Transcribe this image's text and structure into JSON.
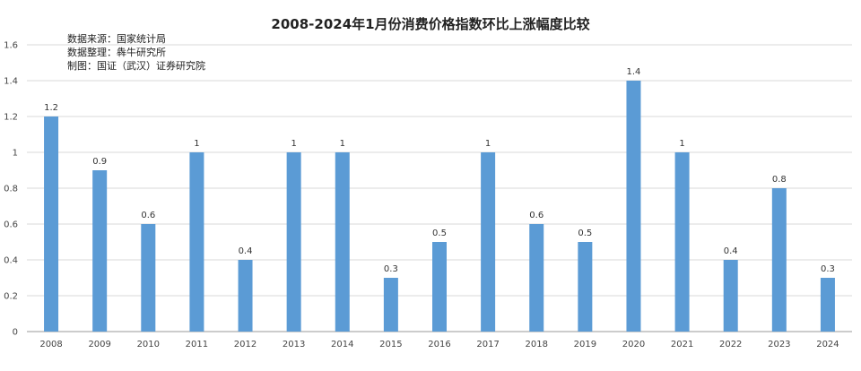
{
  "chart_data": {
    "type": "bar",
    "title": "2008-2024年1月份消费价格指数环比上涨幅度比较",
    "categories": [
      "2008",
      "2009",
      "2010",
      "2011",
      "2012",
      "2013",
      "2014",
      "2015",
      "2016",
      "2017",
      "2018",
      "2019",
      "2020",
      "2021",
      "2022",
      "2023",
      "2024"
    ],
    "values": [
      1.2,
      0.9,
      0.6,
      1,
      0.4,
      1,
      1,
      0.3,
      0.5,
      1,
      0.6,
      0.5,
      1.4,
      1,
      0.4,
      0.8,
      0.3
    ],
    "data_labels": [
      "1.2",
      "0.9",
      "0.6",
      "1",
      "0.4",
      "1",
      "1",
      "0.3",
      "0.5",
      "1",
      "0.6",
      "0.5",
      "1.4",
      "1",
      "0.4",
      "0.8",
      "0.3"
    ],
    "y_ticks": [
      "0",
      "0.2",
      "0.4",
      "0.6",
      "0.8",
      "1",
      "1.2",
      "1.4",
      "1.6"
    ],
    "ylim": [
      0,
      1.6
    ],
    "grid": true,
    "legend": "none",
    "bar_color": "#5b9bd5",
    "annotations": [
      "数据来源：国家统计局",
      "数据整理：犇牛研究所",
      "制图：国证（武汉）证券研究院"
    ]
  }
}
